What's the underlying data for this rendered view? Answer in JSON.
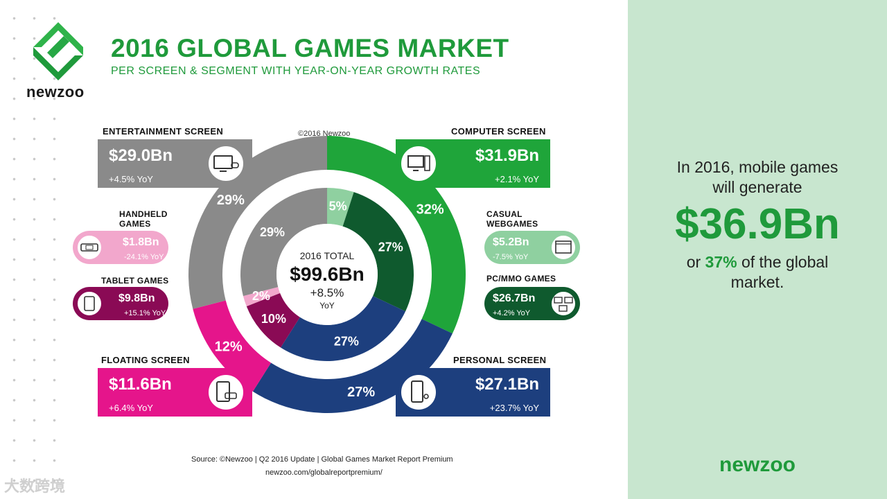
{
  "header": {
    "title": "2016 GLOBAL GAMES MARKET",
    "subtitle": "PER SCREEN & SEGMENT WITH YEAR-ON-YEAR GROWTH RATES",
    "logo_text": "newzoo",
    "copyright": "©2016 Newzoo"
  },
  "colors": {
    "entertainment": "#8a8a8a",
    "computer": "#1fa53a",
    "computer_dark": "#0f5a2e",
    "casual_light": "#8fd0a0",
    "personal": "#1d3f7e",
    "floating": "#e5158b",
    "tablet": "#8a0a55",
    "handheld": "#f2a7cc",
    "brand": "#1f9a3b",
    "side_bg": "#c8e6cf"
  },
  "center": {
    "label": "2016 TOTAL",
    "value": "$99.6Bn",
    "growth": "+8.5%",
    "growth_unit": "YoY"
  },
  "cards": {
    "entertainment": {
      "label": "ENTERTAINMENT SCREEN",
      "value": "$29.0Bn",
      "yoy": "+4.5% YoY",
      "icon": "tv-gamepad-icon"
    },
    "computer": {
      "label": "COMPUTER SCREEN",
      "value": "$31.9Bn",
      "yoy": "+2.1% YoY",
      "icon": "desktop-computer-icon"
    },
    "floating": {
      "label": "FLOATING SCREEN",
      "value": "$11.6Bn",
      "yoy": "+6.4% YoY",
      "icon": "tablet-handheld-icon"
    },
    "personal": {
      "label": "PERSONAL SCREEN",
      "value": "$27.1Bn",
      "yoy": "+23.7% YoY",
      "icon": "smartphone-icon"
    },
    "handheld": {
      "label_line1": "HANDHELD",
      "label_line2": "GAMES",
      "value": "$1.8Bn",
      "yoy": "-24.1% YoY",
      "icon": "handheld-console-icon"
    },
    "tablet": {
      "label": "TABLET GAMES",
      "value": "$9.8Bn",
      "yoy": "+15.1% YoY",
      "icon": "tablet-icon"
    },
    "casual": {
      "label_line1": "CASUAL",
      "label_line2": "WEBGAMES",
      "value": "$5.2Bn",
      "yoy": "-7.5% YoY",
      "icon": "browser-window-icon"
    },
    "pcmmo": {
      "label": "PC/MMO GAMES",
      "value": "$26.7Bn",
      "yoy": "+4.2% YoY",
      "icon": "networked-computers-icon"
    }
  },
  "chart_data": {
    "type": "pie",
    "title": "2016 GLOBAL GAMES MARKET",
    "rings": [
      {
        "name": "screen",
        "categories": [
          "COMPUTER SCREEN",
          "PERSONAL SCREEN",
          "FLOATING SCREEN",
          "ENTERTAINMENT SCREEN"
        ],
        "values": [
          32,
          27,
          12,
          29
        ],
        "labels": [
          "32%",
          "27%",
          "12%",
          "29%"
        ],
        "revenue": [
          "$31.9Bn",
          "$27.1Bn",
          "$11.6Bn",
          "$29.0Bn"
        ],
        "yoy": [
          "+2.1%",
          "+23.7%",
          "+6.4%",
          "+4.5%"
        ]
      },
      {
        "name": "segment",
        "categories": [
          "CASUAL WEBGAMES",
          "PC/MMO GAMES",
          "PERSONAL SCREEN",
          "TABLET GAMES",
          "HANDHELD GAMES",
          "ENTERTAINMENT SCREEN"
        ],
        "values": [
          5,
          27,
          27,
          10,
          2,
          29
        ],
        "labels": [
          "5%",
          "27%",
          "27%",
          "10%",
          "2%",
          "29%"
        ]
      }
    ],
    "total": "$99.6Bn"
  },
  "footer": {
    "source": "Source: ©Newzoo | Q2 2016 Update | Global Games Market Report Premium",
    "url": "newzoo.com/globalreportpremium/",
    "watermark": "大数跨境"
  },
  "side": {
    "line1": "In 2016, mobile games",
    "line2": "will generate",
    "big_value": "$36.9Bn",
    "line3_pre": "or",
    "line3_pct": "37%",
    "line3_post": "of the global",
    "line4": "market.",
    "logo": "newzoo"
  }
}
